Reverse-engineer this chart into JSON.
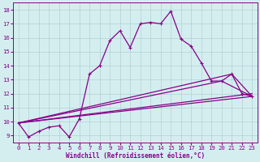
{
  "xlabel": "Windchill (Refroidissement éolien,°C)",
  "bg_color": "#d4eef0",
  "grid_color": "#b0d0d4",
  "line_color": "#880088",
  "xlim": [
    -0.5,
    23.5
  ],
  "ylim": [
    8.5,
    18.5
  ],
  "xticks": [
    0,
    1,
    2,
    3,
    4,
    5,
    6,
    7,
    8,
    9,
    10,
    11,
    12,
    13,
    14,
    15,
    16,
    17,
    18,
    19,
    20,
    21,
    22,
    23
  ],
  "yticks": [
    9,
    10,
    11,
    12,
    13,
    14,
    15,
    16,
    17,
    18
  ],
  "series1_x": [
    0,
    1,
    2,
    3,
    4,
    5,
    6,
    7,
    8,
    9,
    10,
    11,
    12,
    13,
    14,
    15,
    16,
    17,
    18,
    19,
    20,
    21,
    22,
    23
  ],
  "series1_y": [
    9.9,
    8.9,
    9.3,
    9.6,
    9.7,
    8.9,
    10.2,
    13.4,
    14.0,
    15.8,
    16.5,
    15.3,
    17.0,
    17.1,
    17.0,
    17.9,
    15.9,
    15.4,
    14.2,
    12.9,
    12.9,
    13.4,
    12.0,
    11.8
  ],
  "line2_x": [
    0,
    23
  ],
  "line2_y": [
    9.9,
    11.8
  ],
  "line3_x": [
    0,
    23
  ],
  "line3_y": [
    9.9,
    12.0
  ],
  "line4_x": [
    0,
    21,
    23
  ],
  "line4_y": [
    9.9,
    13.4,
    11.8
  ],
  "line5_x": [
    0,
    20,
    23
  ],
  "line5_y": [
    9.9,
    12.9,
    11.8
  ]
}
